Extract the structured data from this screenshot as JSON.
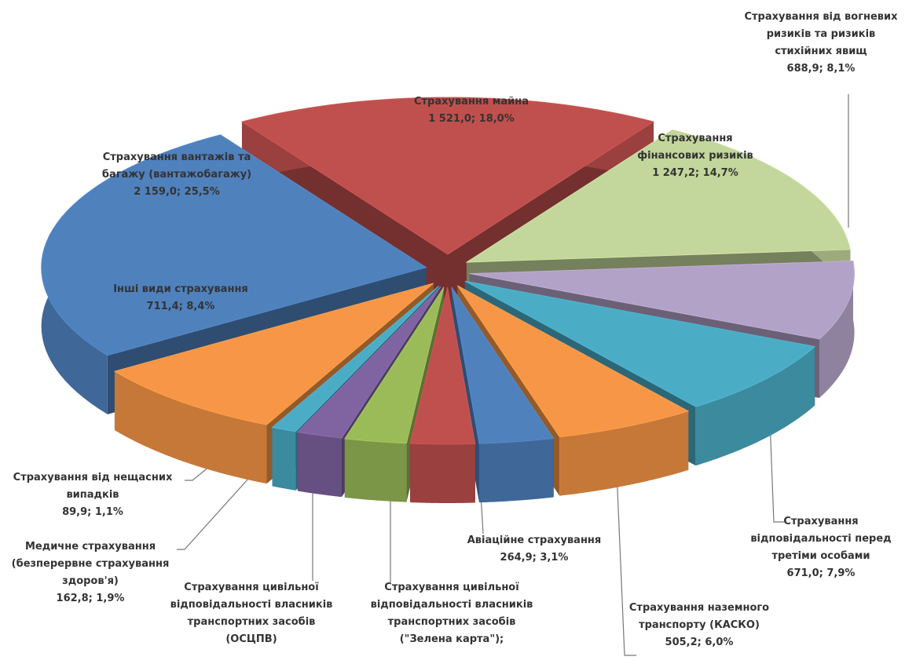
{
  "chart_data": {
    "type": "pie",
    "categories": [
      "Страхування майна",
      "Страхування фінансових ризиків",
      "Страхування від вогневих ризиків та ризиків стихійних явищ",
      "Страхування відповідальності перед третіми особами",
      "Страхування наземного транспорту (КАСКО)",
      "Авіаційне страхування",
      "Страхування цивільної відповідальності власників транспортних засобів (\"Зелена карта\");",
      "Страхування цивільної відповідальності власників транспортних засобів (ОСЦПВ)",
      "Медичне страхування (безперервне страхування здоров'я)",
      "Страхування від нещасних випадків",
      "Інші види страхування",
      "Страхування вантажів та багажу (вантажобагажу)"
    ],
    "values": [
      1521.0,
      1247.2,
      688.9,
      671.0,
      505.2,
      264.9,
      228,
      220,
      162.8,
      89.9,
      711.4,
      2159.0
    ],
    "value_labels": [
      "1 521,0; 18,0%",
      "1 247,2; 14,7%",
      "688,9; 8,1%",
      "671,0; 7,9%",
      "505,2; 6,0%",
      "264,9; 3,1%",
      null,
      null,
      "162,8; 1,9%",
      "89,9; 1,1%",
      "711,4; 8,4%",
      "2 159,0; 25,5%"
    ],
    "colors": [
      "#c0504d",
      "#c3d69b",
      "#b3a2c7",
      "#4bacc6",
      "#f79646",
      "#4f81bd",
      "#c0504d",
      "#9bbb59",
      "#8064a2",
      "#4bacc6",
      "#f79646",
      "#4f81bd"
    ]
  }
}
